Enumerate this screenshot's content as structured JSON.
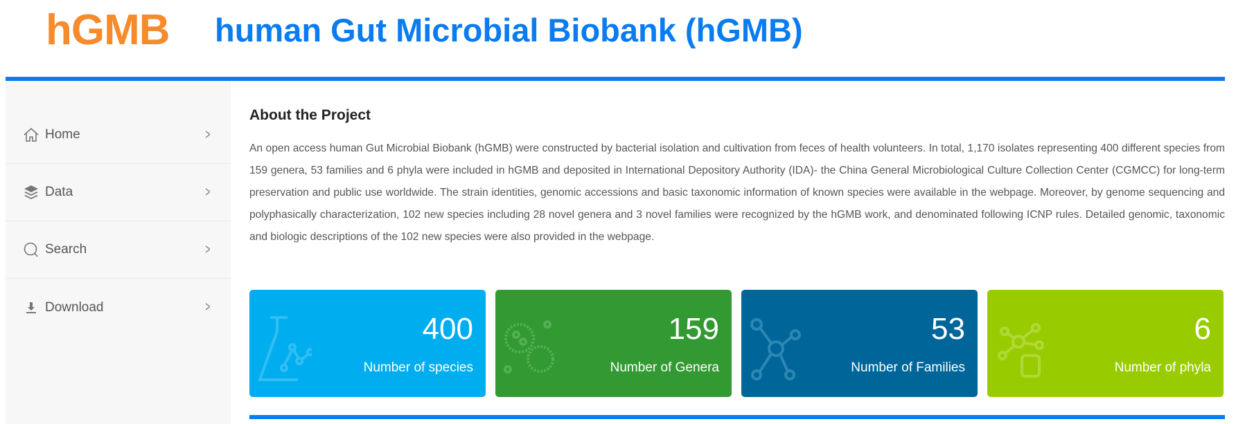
{
  "header": {
    "logo": "hGMB",
    "title": "human Gut Microbial Biobank (hGMB)"
  },
  "sidebar": {
    "items": [
      {
        "label": "Home",
        "icon": "home-icon"
      },
      {
        "label": "Data",
        "icon": "layers-icon"
      },
      {
        "label": "Search",
        "icon": "search-icon"
      },
      {
        "label": "Download",
        "icon": "download-icon"
      }
    ]
  },
  "main": {
    "heading": "About the Project",
    "paragraph": "An open access human Gut Microbial Biobank (hGMB) were constructed by bacterial isolation and cultivation from feces of health volunteers. In total, 1,170 isolates representing 400 different species from 159 genera, 53 families and 6 phyla were included in hGMB and deposited in International Depository Authority (IDA)- the China General Microbiological Culture Collection Center (CGMCC) for long-term preservation and public use worldwide. The strain identities, genomic accessions and basic taxonomic information of known species were available in the webpage. Moreover, by genome sequencing and polyphasically characterization, 102 new species including 28 novel genera and 3 novel families were recognized by the hGMB work, and denominated following ICNP rules. Detailed genomic, taxonomic and biologic descriptions of the 102 new species were also provided in the webpage.",
    "cards": [
      {
        "value": "400",
        "label": "Number of species",
        "color": "#00aeef",
        "icon": "flask-chart-icon"
      },
      {
        "value": "159",
        "label": "Number of Genera",
        "color": "#339933",
        "icon": "microbes-icon"
      },
      {
        "value": "53",
        "label": "Number of Families",
        "color": "#006699",
        "icon": "molecule-icon"
      },
      {
        "value": "6",
        "label": "Number of phyla",
        "color": "#99cc00",
        "icon": "network-database-icon"
      }
    ]
  },
  "colors": {
    "accent": "#0a7cf0",
    "logo": "#f68b2c"
  }
}
